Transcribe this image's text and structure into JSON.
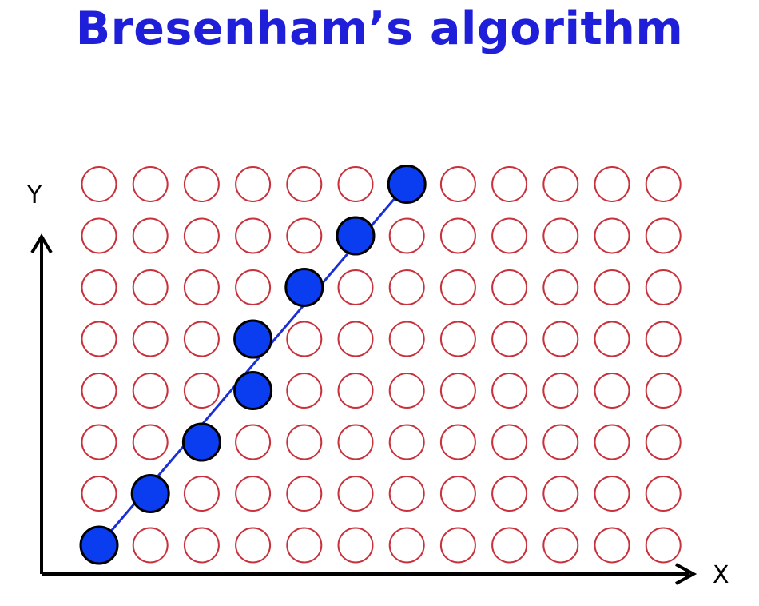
{
  "title": "Bresenham’s algorithm",
  "axes": {
    "x_label": "X",
    "y_label": "Y"
  },
  "grid": {
    "columns": 12,
    "rows": 8
  },
  "line": {
    "from": [
      0,
      0
    ],
    "to": [
      6,
      7
    ]
  },
  "plotted_pixels": [
    [
      0,
      0
    ],
    [
      1,
      1
    ],
    [
      2,
      2
    ],
    [
      3,
      3
    ],
    [
      3,
      4
    ],
    [
      4,
      5
    ],
    [
      5,
      6
    ],
    [
      6,
      7
    ]
  ],
  "colors": {
    "title": "#1f1fd9",
    "empty_pixel_stroke": "#c8323c",
    "filled_pixel": "#0a3cf0",
    "filled_pixel_stroke": "#000000",
    "line": "#1a2fd6",
    "axis": "#000000"
  }
}
